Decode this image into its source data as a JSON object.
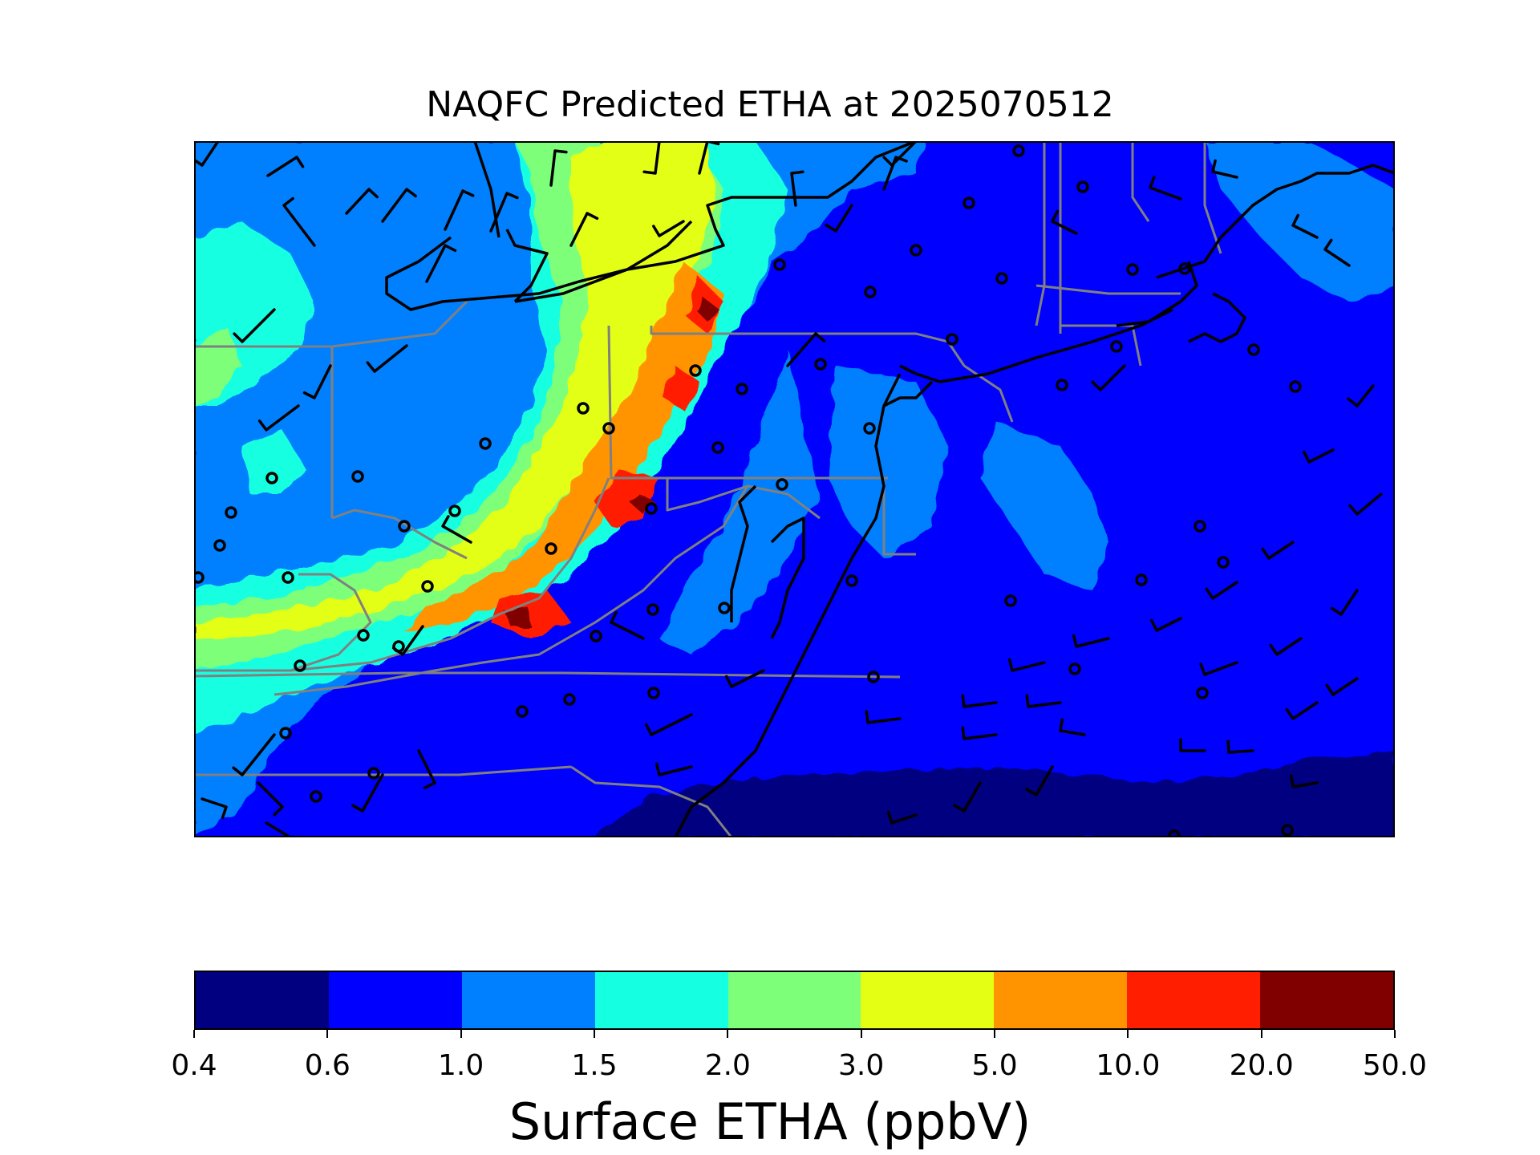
{
  "title": "NAQFC Predicted ETHA at 2025070512",
  "colorbar": {
    "label": "Surface ETHA (ppbV)",
    "ticks": [
      "0.4",
      "0.6",
      "1.0",
      "1.5",
      "2.0",
      "3.0",
      "5.0",
      "10.0",
      "20.0",
      "50.0"
    ],
    "colors": [
      "#000080",
      "#0000ff",
      "#0080ff",
      "#15ffe1",
      "#7dff7a",
      "#e4ff13",
      "#ff9400",
      "#ff1e00",
      "#800000"
    ]
  },
  "map": {
    "background_color": "#0000ff",
    "state_border_color": "#808080",
    "coast_color": "#000000",
    "symbols": [
      "calm-circle",
      "wind-barb"
    ]
  }
}
